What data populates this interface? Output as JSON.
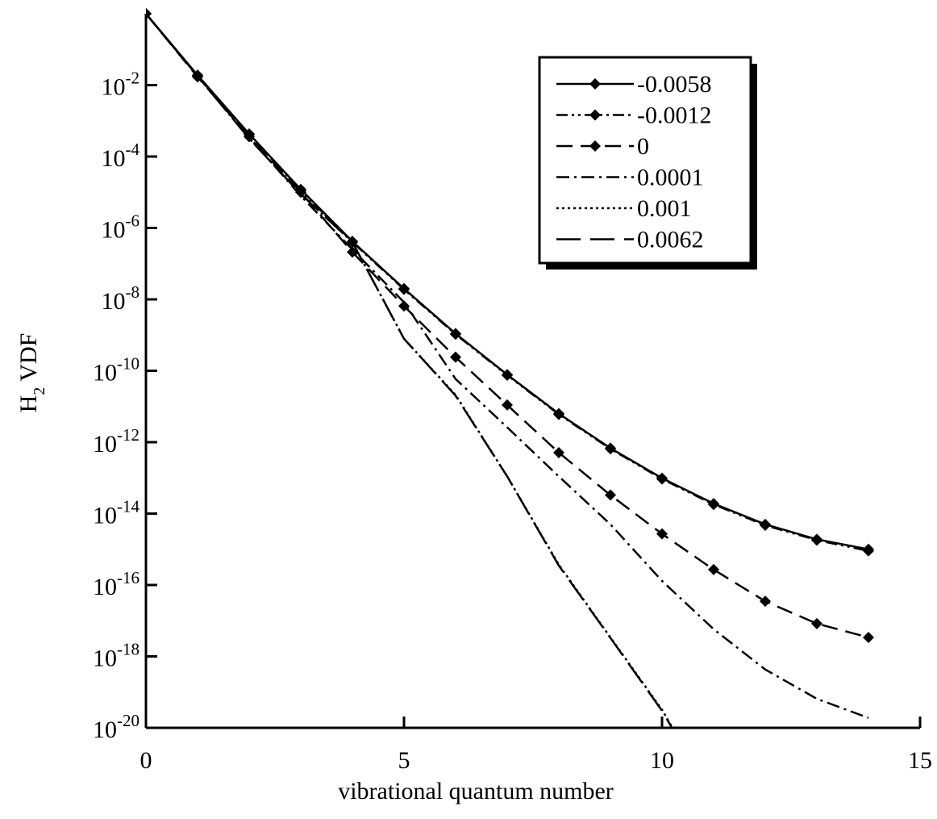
{
  "chart_data": {
    "type": "line",
    "x_label": "vibrational quantum number",
    "y_label": "H2 VDF",
    "log_y": true,
    "x": [
      0,
      1,
      2,
      3,
      4,
      5,
      6,
      7,
      8,
      9,
      10,
      11,
      12,
      13,
      14
    ],
    "xlim": [
      0,
      15
    ],
    "xticks": [
      0,
      5,
      10,
      15
    ],
    "ylim": [
      1e-20,
      1
    ],
    "yticks": [
      {
        "value": 0.01,
        "label": "10-2"
      },
      {
        "value": 0.0001,
        "label": "10-4"
      },
      {
        "value": 1e-06,
        "label": "10-6"
      },
      {
        "value": 1e-08,
        "label": "10-8"
      },
      {
        "value": 1e-10,
        "label": "10-10"
      },
      {
        "value": 1e-12,
        "label": "10-12"
      },
      {
        "value": 1e-14,
        "label": "10-14"
      },
      {
        "value": 1e-16,
        "label": "10-16"
      },
      {
        "value": 1e-18,
        "label": "10-18"
      },
      {
        "value": 1e-20,
        "label": "10-20"
      }
    ],
    "legend": "top-right",
    "series": [
      {
        "name": "-0.0058",
        "color": "#000000",
        "linestyle": "solid",
        "marker": "diamond",
        "values": [
          1,
          0.019,
          0.00043,
          1.2e-05,
          4.2e-07,
          2e-08,
          1.1e-09,
          7.8e-11,
          6.3e-12,
          6.8e-13,
          9.8e-14,
          1.9e-14,
          5e-15,
          1.9e-15,
          1e-15
        ]
      },
      {
        "name": "-0.0012",
        "color": "#000000",
        "linestyle": "dashdotdot",
        "marker": "diamond",
        "values": [
          1,
          0.018,
          0.00041,
          1.1e-05,
          4e-07,
          1.9e-08,
          1.05e-09,
          7.5e-11,
          6e-12,
          6.5e-13,
          9.3e-14,
          1.8e-14,
          4.7e-15,
          1.8e-15,
          9e-16
        ]
      },
      {
        "name": "0",
        "color": "#000000",
        "linestyle": "dash",
        "marker": "diamond",
        "values": [
          1,
          0.017,
          0.00036,
          1e-05,
          2.1e-07,
          6.5e-09,
          2.4e-10,
          1.1e-11,
          5.1e-13,
          3.3e-14,
          2.7e-15,
          2.7e-16,
          3.5e-17,
          8.3e-18,
          3.4e-18
        ]
      },
      {
        "name": "0.0001",
        "color": "#000000",
        "linestyle": "dashdot",
        "marker": "none",
        "values": [
          1,
          0.018,
          0.00035,
          7.9e-06,
          2.5e-07,
          8.3e-09,
          5.9e-11,
          2.6e-12,
          1.1e-13,
          5e-15,
          1.3e-16,
          5.8e-18,
          4.3e-19,
          6.5e-20,
          1.9e-20
        ]
      },
      {
        "name": "0.001",
        "color": "#000000",
        "linestyle": "dot",
        "marker": "none",
        "values": [
          1,
          0.018,
          0.00032,
          8.9e-06,
          4e-07,
          7.9e-10,
          2.1e-11,
          1.1e-13,
          3.7e-16,
          3.4e-18,
          3.2e-20,
          1e-22,
          null,
          null,
          null
        ]
      },
      {
        "name": "0.0062",
        "color": "#000000",
        "linestyle": "longdash",
        "marker": "none",
        "values": [
          1,
          0.018,
          0.00032,
          8.9e-06,
          4e-07,
          7.9e-10,
          2e-11,
          1.1e-13,
          3.5e-16,
          3.3e-18,
          3e-20,
          1e-22,
          null,
          null,
          null
        ]
      }
    ]
  }
}
